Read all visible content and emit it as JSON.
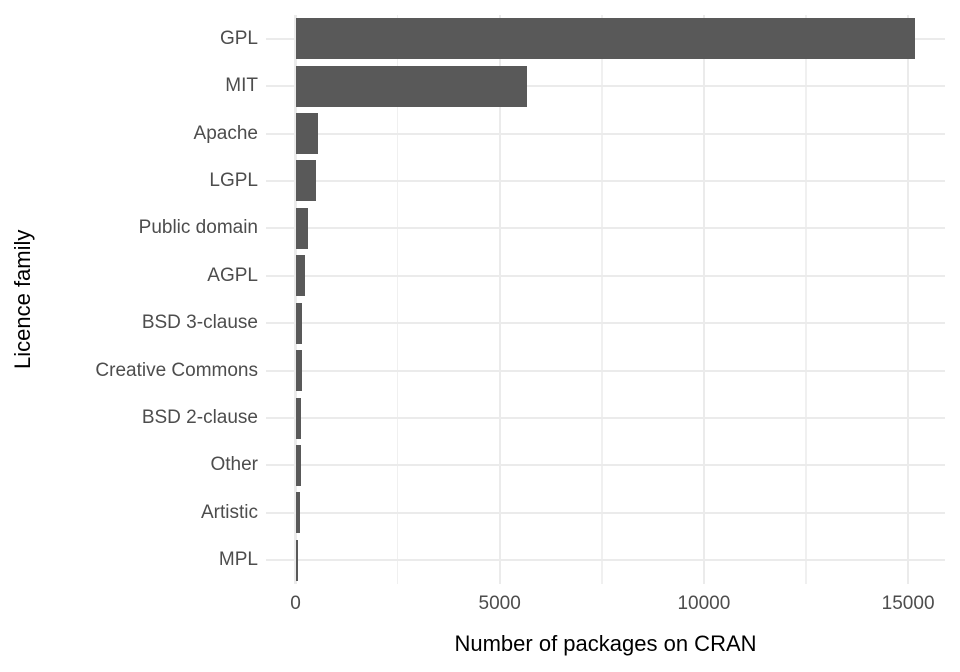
{
  "chart_data": {
    "type": "bar",
    "orientation": "horizontal",
    "title": "",
    "xlabel": "Number of packages on CRAN",
    "ylabel": "Licence family",
    "categories": [
      "GPL",
      "MIT",
      "Apache",
      "LGPL",
      "Public domain",
      "AGPL",
      "BSD 3-clause",
      "Creative Commons",
      "BSD 2-clause",
      "Other",
      "Artistic",
      "MPL"
    ],
    "values": [
      15170,
      5680,
      550,
      490,
      310,
      230,
      170,
      165,
      140,
      138,
      114,
      57
    ],
    "x_major_ticks": [
      0,
      5000,
      10000,
      15000
    ],
    "x_tick_labels": [
      "0",
      "5000",
      "10000",
      "15000"
    ],
    "x_minor_ticks": [
      2500,
      7500,
      12500
    ],
    "xlim": [
      -800,
      15920
    ],
    "grid": "major-and-minor-vertical, major-horizontal",
    "legend": "none",
    "bar_color": "#595959",
    "grid_major_color": "#EBEBEB",
    "grid_minor_color": "#F0F0F0",
    "axis_text_color": "#4D4D4D",
    "axis_title_color": "#000000",
    "background_color": "#FFFFFF"
  }
}
